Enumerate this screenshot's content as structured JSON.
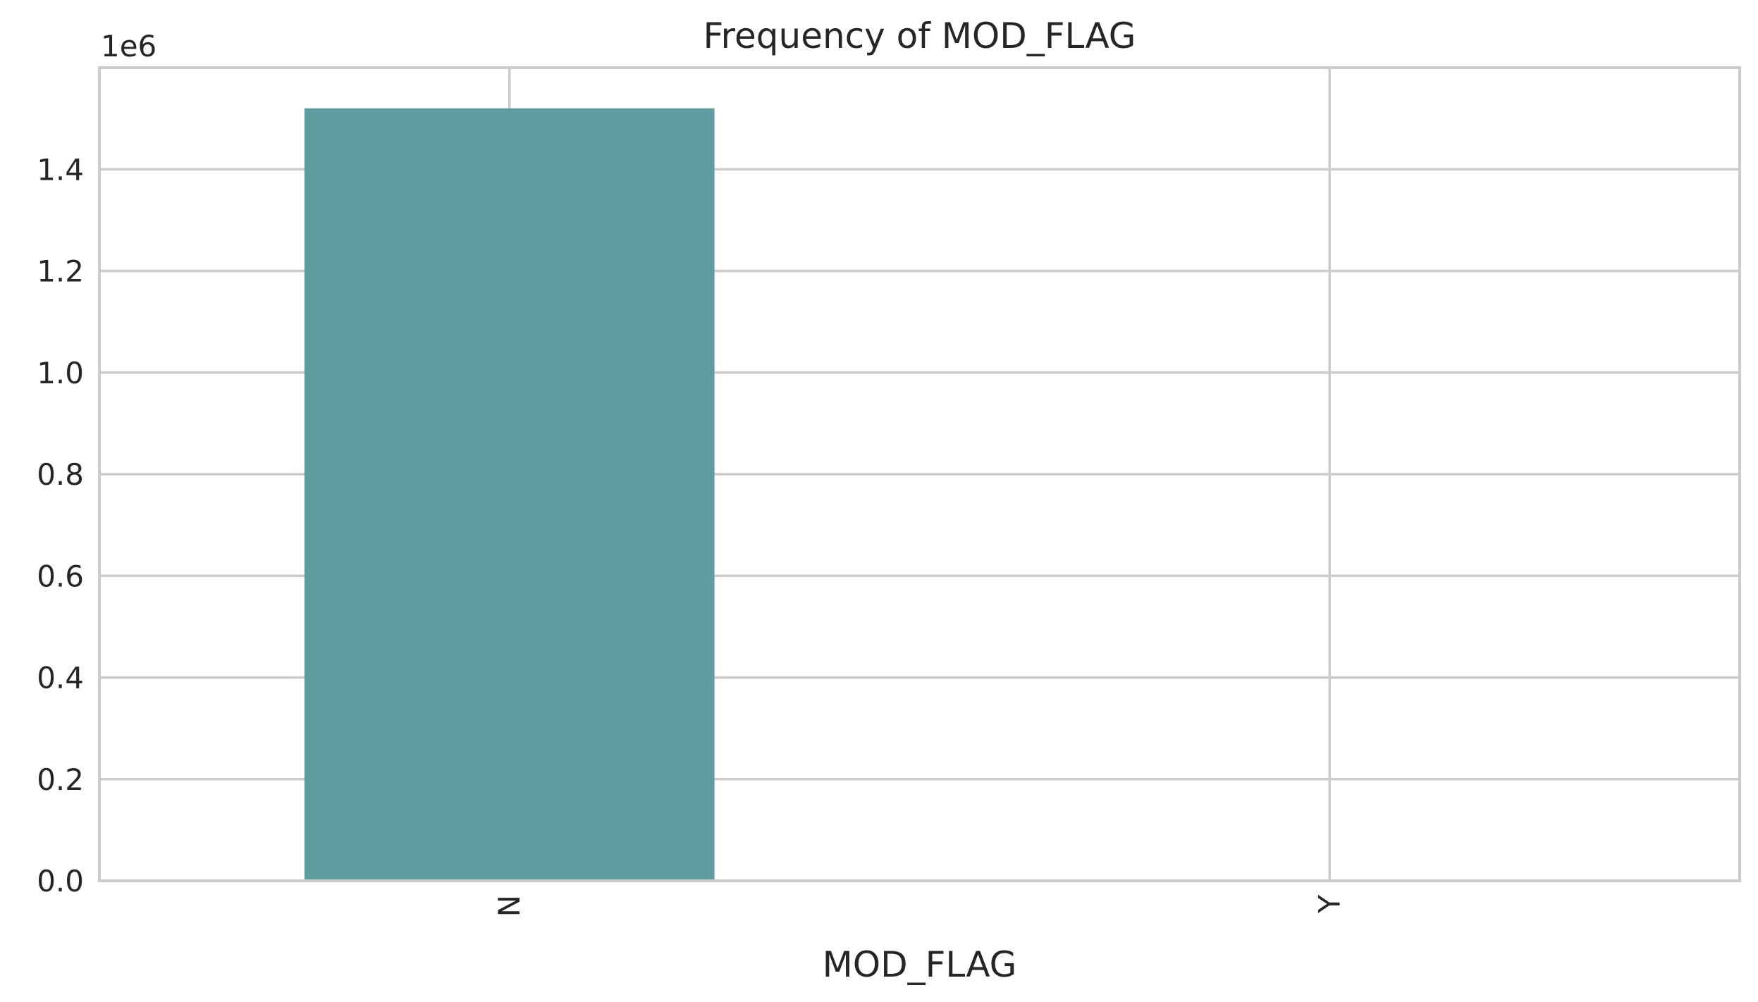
{
  "chart_data": {
    "type": "bar",
    "title": "Frequency of MOD_FLAG",
    "xlabel": "MOD_FLAG",
    "ylabel": "",
    "categories": [
      "N",
      "Y"
    ],
    "values": [
      1520000,
      0
    ],
    "ylim": [
      0,
      1600000
    ],
    "yticks": [
      0,
      200000,
      400000,
      600000,
      800000,
      1000000,
      1200000,
      1400000
    ],
    "ytick_labels": [
      "0.0",
      "0.2",
      "0.4",
      "0.6",
      "0.8",
      "1.0",
      "1.2",
      "1.4"
    ],
    "y_offset_label": "1e6",
    "xtick_rotation": 90,
    "grid": true,
    "bar_color": "#5f9ea0",
    "grid_color": "#cccccc",
    "text_color": "#262626"
  }
}
